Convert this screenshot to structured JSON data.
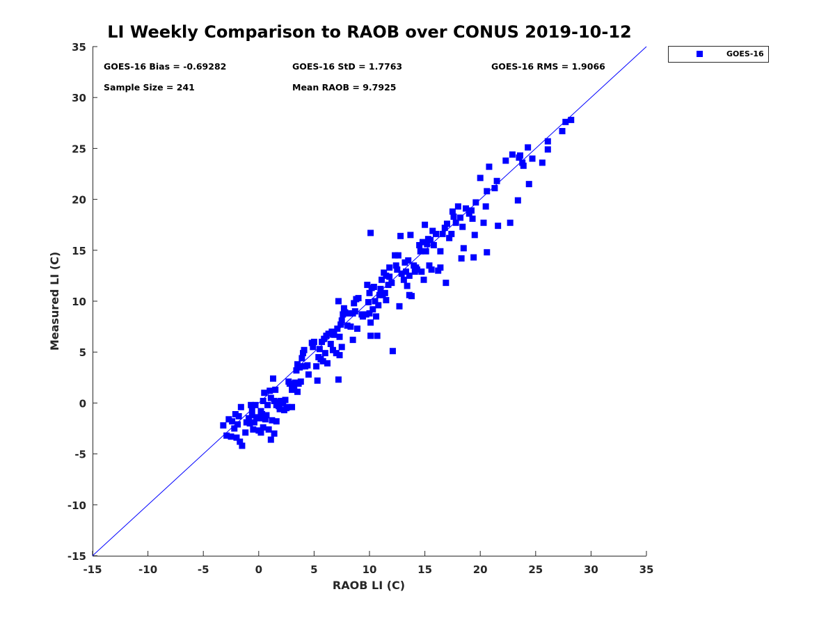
{
  "chart_data": {
    "type": "scatter",
    "title": "LI Weekly Comparison to RAOB over CONUS 2019-10-12",
    "xlabel": "RAOB LI (C)",
    "ylabel": "Measured LI (C)",
    "xlim": [
      -15,
      35
    ],
    "ylim": [
      -15,
      35
    ],
    "xticks": [
      "-15",
      "-10",
      "-5",
      "0",
      "5",
      "10",
      "15",
      "20",
      "25",
      "30",
      "35"
    ],
    "yticks": [
      "-15",
      "-10",
      "-5",
      "0",
      "5",
      "10",
      "15",
      "20",
      "25",
      "30",
      "35"
    ],
    "legend": {
      "position": "top-right-outside",
      "entries": [
        "GOES-16"
      ]
    },
    "reference_line": {
      "type": "one-to-one",
      "from": [
        -15,
        -15
      ],
      "to": [
        35,
        35
      ]
    },
    "stats": {
      "bias": "GOES-16 Bias = -0.69282",
      "std": "GOES-16 StD = 1.7763",
      "rms": "GOES-16 RMS = 1.9066",
      "sample": "Sample Size = 241",
      "mean": "Mean RAOB = 9.7925"
    },
    "colors": {
      "marker": "#0000ff",
      "line": "#0000ff",
      "axis": "#262626"
    },
    "series": [
      {
        "name": "GOES-16",
        "marker": "square",
        "points": [
          [
            -3.2,
            -2.2
          ],
          [
            -2.9,
            -3.2
          ],
          [
            -2.7,
            -1.6
          ],
          [
            -2.5,
            -3.3
          ],
          [
            -2.4,
            -1.8
          ],
          [
            -2.2,
            -2.5
          ],
          [
            -2.1,
            -1.1
          ],
          [
            -2.0,
            -3.4
          ],
          [
            -1.9,
            -2.1
          ],
          [
            -1.8,
            -1.3
          ],
          [
            -1.7,
            -3.8
          ],
          [
            -1.6,
            -0.4
          ],
          [
            -1.5,
            -4.2
          ],
          [
            -1.2,
            -2.9
          ],
          [
            -1.1,
            -1.9
          ],
          [
            -0.9,
            -1.5
          ],
          [
            -0.8,
            -2.0
          ],
          [
            -0.7,
            -0.2
          ],
          [
            -0.6,
            -0.6
          ],
          [
            -0.6,
            -1.2
          ],
          [
            -0.5,
            -2.6
          ],
          [
            -0.4,
            -1.9
          ],
          [
            -0.3,
            -0.2
          ],
          [
            -0.2,
            -1.4
          ],
          [
            0.0,
            -2.7
          ],
          [
            0.1,
            -1.5
          ],
          [
            0.2,
            -2.9
          ],
          [
            0.2,
            -0.8
          ],
          [
            0.3,
            -1.1
          ],
          [
            0.4,
            0.2
          ],
          [
            0.4,
            -2.4
          ],
          [
            0.5,
            1.0
          ],
          [
            0.6,
            -1.6
          ],
          [
            0.7,
            -1.2
          ],
          [
            0.8,
            -0.2
          ],
          [
            0.9,
            -2.6
          ],
          [
            1.0,
            1.2
          ],
          [
            1.1,
            -3.6
          ],
          [
            1.1,
            0.5
          ],
          [
            1.2,
            -1.7
          ],
          [
            1.3,
            2.4
          ],
          [
            1.4,
            0.2
          ],
          [
            1.4,
            -3.0
          ],
          [
            1.5,
            1.3
          ],
          [
            1.6,
            -1.8
          ],
          [
            1.6,
            -0.2
          ],
          [
            1.7,
            0.1
          ],
          [
            1.8,
            -0.3
          ],
          [
            1.9,
            -0.6
          ],
          [
            2.0,
            0.2
          ],
          [
            2.2,
            0.0
          ],
          [
            2.3,
            -0.7
          ],
          [
            2.4,
            0.3
          ],
          [
            2.5,
            -0.5
          ],
          [
            2.6,
            -0.4
          ],
          [
            2.7,
            2.1
          ],
          [
            2.8,
            1.9
          ],
          [
            3.0,
            1.3
          ],
          [
            3.0,
            -0.4
          ],
          [
            3.1,
            1.6
          ],
          [
            3.2,
            1.4
          ],
          [
            3.3,
            2.0
          ],
          [
            3.4,
            3.2
          ],
          [
            3.5,
            1.1
          ],
          [
            3.5,
            3.8
          ],
          [
            3.6,
            1.9
          ],
          [
            3.7,
            3.5
          ],
          [
            3.8,
            2.1
          ],
          [
            3.9,
            4.4
          ],
          [
            3.9,
            3.6
          ],
          [
            4.0,
            4.9
          ],
          [
            4.1,
            5.2
          ],
          [
            4.2,
            3.6
          ],
          [
            4.4,
            3.7
          ],
          [
            4.5,
            2.8
          ],
          [
            4.8,
            5.9
          ],
          [
            4.9,
            5.5
          ],
          [
            5.0,
            6.0
          ],
          [
            5.2,
            3.6
          ],
          [
            5.3,
            2.2
          ],
          [
            5.4,
            4.5
          ],
          [
            5.5,
            5.3
          ],
          [
            5.6,
            4.3
          ],
          [
            5.7,
            6.0
          ],
          [
            5.8,
            4.1
          ],
          [
            5.9,
            6.3
          ],
          [
            6.0,
            4.9
          ],
          [
            6.1,
            6.6
          ],
          [
            6.2,
            3.9
          ],
          [
            6.3,
            6.8
          ],
          [
            6.5,
            5.8
          ],
          [
            6.6,
            7.0
          ],
          [
            6.7,
            5.2
          ],
          [
            6.8,
            6.7
          ],
          [
            7.0,
            4.9
          ],
          [
            7.1,
            7.3
          ],
          [
            7.2,
            2.3
          ],
          [
            7.2,
            10.0
          ],
          [
            7.3,
            4.7
          ],
          [
            7.3,
            6.5
          ],
          [
            7.4,
            7.7
          ],
          [
            7.5,
            5.5
          ],
          [
            7.5,
            8.1
          ],
          [
            7.6,
            8.7
          ],
          [
            7.7,
            9.3
          ],
          [
            7.8,
            8.9
          ],
          [
            8.0,
            7.6
          ],
          [
            8.1,
            8.8
          ],
          [
            8.3,
            7.5
          ],
          [
            8.5,
            8.8
          ],
          [
            8.5,
            6.2
          ],
          [
            8.6,
            9.8
          ],
          [
            8.7,
            9.0
          ],
          [
            8.8,
            10.2
          ],
          [
            8.9,
            7.3
          ],
          [
            9.0,
            10.3
          ],
          [
            9.3,
            8.7
          ],
          [
            9.4,
            8.5
          ],
          [
            9.7,
            8.7
          ],
          [
            9.8,
            11.6
          ],
          [
            9.9,
            9.9
          ],
          [
            10.0,
            8.8
          ],
          [
            10.0,
            10.8
          ],
          [
            10.1,
            7.9
          ],
          [
            10.1,
            6.6
          ],
          [
            10.2,
            11.3
          ],
          [
            10.1,
            16.7
          ],
          [
            10.3,
            9.2
          ],
          [
            10.4,
            11.4
          ],
          [
            10.5,
            10.0
          ],
          [
            10.6,
            8.5
          ],
          [
            10.7,
            6.6
          ],
          [
            10.8,
            9.6
          ],
          [
            10.9,
            10.6
          ],
          [
            11.0,
            11.2
          ],
          [
            11.1,
            12.1
          ],
          [
            11.2,
            10.6
          ],
          [
            11.3,
            12.8
          ],
          [
            11.4,
            10.8
          ],
          [
            11.5,
            12.5
          ],
          [
            11.5,
            10.1
          ],
          [
            11.7,
            11.6
          ],
          [
            11.8,
            13.3
          ],
          [
            11.8,
            12.4
          ],
          [
            12.0,
            11.8
          ],
          [
            12.1,
            5.1
          ],
          [
            12.3,
            14.5
          ],
          [
            12.4,
            13.5
          ],
          [
            12.5,
            13.1
          ],
          [
            12.6,
            14.5
          ],
          [
            12.7,
            9.5
          ],
          [
            12.8,
            16.4
          ],
          [
            12.9,
            12.7
          ],
          [
            13.1,
            12.1
          ],
          [
            13.2,
            13.8
          ],
          [
            13.3,
            12.9
          ],
          [
            13.4,
            11.5
          ],
          [
            13.5,
            14.0
          ],
          [
            13.6,
            12.5
          ],
          [
            13.6,
            10.6
          ],
          [
            13.7,
            16.5
          ],
          [
            13.8,
            10.5
          ],
          [
            14.0,
            13.5
          ],
          [
            14.1,
            12.9
          ],
          [
            14.2,
            13.3
          ],
          [
            14.3,
            13.1
          ],
          [
            14.5,
            15.5
          ],
          [
            14.6,
            14.9
          ],
          [
            14.7,
            12.9
          ],
          [
            14.8,
            15.8
          ],
          [
            14.9,
            12.1
          ],
          [
            15.0,
            17.5
          ],
          [
            15.1,
            14.9
          ],
          [
            15.2,
            15.6
          ],
          [
            15.3,
            16.1
          ],
          [
            15.4,
            13.5
          ],
          [
            15.5,
            16.0
          ],
          [
            15.6,
            13.1
          ],
          [
            15.7,
            16.9
          ],
          [
            15.8,
            15.5
          ],
          [
            16.0,
            16.6
          ],
          [
            16.2,
            13.0
          ],
          [
            16.4,
            14.9
          ],
          [
            16.4,
            13.3
          ],
          [
            16.6,
            16.6
          ],
          [
            16.8,
            17.2
          ],
          [
            16.9,
            11.8
          ],
          [
            17.0,
            17.6
          ],
          [
            17.2,
            16.2
          ],
          [
            17.4,
            16.6
          ],
          [
            17.5,
            18.8
          ],
          [
            17.6,
            18.3
          ],
          [
            17.8,
            17.7
          ],
          [
            18.0,
            19.3
          ],
          [
            18.2,
            18.2
          ],
          [
            18.3,
            14.2
          ],
          [
            18.4,
            17.3
          ],
          [
            18.5,
            15.2
          ],
          [
            18.7,
            19.1
          ],
          [
            19.0,
            18.6
          ],
          [
            19.2,
            18.9
          ],
          [
            19.3,
            18.1
          ],
          [
            19.4,
            14.3
          ],
          [
            19.5,
            16.5
          ],
          [
            19.6,
            19.7
          ],
          [
            20.0,
            22.1
          ],
          [
            20.3,
            17.7
          ],
          [
            20.5,
            19.3
          ],
          [
            20.6,
            14.8
          ],
          [
            20.6,
            20.8
          ],
          [
            20.8,
            23.2
          ],
          [
            21.3,
            21.1
          ],
          [
            21.5,
            21.8
          ],
          [
            21.6,
            17.4
          ],
          [
            22.3,
            23.8
          ],
          [
            22.7,
            17.7
          ],
          [
            22.9,
            24.4
          ],
          [
            23.4,
            19.9
          ],
          [
            23.5,
            24.1
          ],
          [
            23.6,
            24.3
          ],
          [
            23.8,
            23.6
          ],
          [
            23.9,
            23.3
          ],
          [
            24.3,
            25.1
          ],
          [
            24.4,
            21.5
          ],
          [
            24.7,
            24.0
          ],
          [
            25.6,
            23.6
          ],
          [
            26.1,
            25.7
          ],
          [
            26.1,
            24.9
          ],
          [
            27.4,
            26.7
          ],
          [
            27.7,
            27.6
          ],
          [
            28.2,
            27.8
          ]
        ]
      }
    ]
  }
}
